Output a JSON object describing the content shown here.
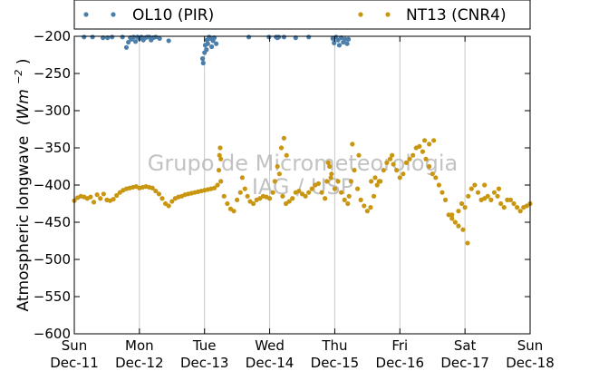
{
  "chart_data": {
    "type": "scatter",
    "title": "",
    "ylabel": "Atmospheric longwave",
    "ylabel_unit_base": "(Wm",
    "ylabel_unit_exp": "−2",
    "ylabel_unit_close": ")",
    "xlabel": "",
    "ylim": [
      -600,
      -200
    ],
    "xlim": [
      0,
      7
    ],
    "y_ticks": [
      -200,
      -250,
      -300,
      -350,
      -400,
      -450,
      -500,
      -550,
      -600
    ],
    "y_tick_labels": [
      "−200",
      "−250",
      "−300",
      "−350",
      "−400",
      "−450",
      "−500",
      "−550",
      "−600"
    ],
    "x_ticks": [
      {
        "x": 0,
        "day": "Sun",
        "date": "Dec-11"
      },
      {
        "x": 1,
        "day": "Mon",
        "date": "Dec-12"
      },
      {
        "x": 2,
        "day": "Tue",
        "date": "Dec-13"
      },
      {
        "x": 3,
        "day": "Wed",
        "date": "Dec-14"
      },
      {
        "x": 4,
        "day": "Thu",
        "date": "Dec-15"
      },
      {
        "x": 5,
        "day": "Fri",
        "date": "Dec-16"
      },
      {
        "x": 6,
        "day": "Sat",
        "date": "Dec-17"
      },
      {
        "x": 7,
        "day": "Sun",
        "date": "Dec-18"
      }
    ],
    "grid": "vertical",
    "legend_position": "top",
    "watermark": [
      "Grupo de Micrometeorologia",
      "IAG / USP"
    ],
    "series": [
      {
        "name": "OL10 (PIR)",
        "color": "#4c7eab",
        "x": [
          0.15,
          0.28,
          0.44,
          0.51,
          0.58,
          0.74,
          0.8,
          0.83,
          0.86,
          0.88,
          0.91,
          0.94,
          0.97,
          1.0,
          1.03,
          1.06,
          1.09,
          1.12,
          1.15,
          1.18,
          1.21,
          1.25,
          1.31,
          1.45,
          1.97,
          1.98,
          2.0,
          2.01,
          2.03,
          2.04,
          2.05,
          2.07,
          2.09,
          2.11,
          2.13,
          2.15,
          2.18,
          2.68,
          2.99,
          3.1,
          3.12,
          3.14,
          3.22,
          3.4,
          3.6,
          3.97,
          3.99,
          4.02,
          4.05,
          4.07,
          4.1,
          4.13,
          4.16,
          4.19,
          4.21
        ],
        "y": [
          -201,
          -201,
          -202,
          -202,
          -201,
          -201,
          -215,
          -208,
          -202,
          -204,
          -201,
          -207,
          -201,
          -203,
          -201,
          -205,
          -202,
          -201,
          -201,
          -205,
          -202,
          -201,
          -203,
          -206,
          -230,
          -236,
          -222,
          -212,
          -218,
          -205,
          -210,
          -201,
          -203,
          -214,
          -206,
          -202,
          -210,
          -201,
          -201,
          -201,
          -202,
          -201,
          -201,
          -202,
          -201,
          -203,
          -209,
          -201,
          -205,
          -212,
          -202,
          -208,
          -204,
          -210,
          -204
        ]
      },
      {
        "name": "NT13 (CNR4)",
        "color": "#c99611",
        "x": [
          0.0,
          0.05,
          0.1,
          0.15,
          0.2,
          0.25,
          0.3,
          0.35,
          0.4,
          0.45,
          0.5,
          0.55,
          0.6,
          0.65,
          0.7,
          0.75,
          0.8,
          0.85,
          0.9,
          0.95,
          1.0,
          1.05,
          1.1,
          1.15,
          1.2,
          1.25,
          1.3,
          1.35,
          1.4,
          1.45,
          1.5,
          1.55,
          1.6,
          1.65,
          1.7,
          1.75,
          1.8,
          1.85,
          1.9,
          1.95,
          2.0,
          2.05,
          2.1,
          2.15,
          2.2,
          2.22,
          2.25,
          2.3,
          2.35,
          2.4,
          2.45,
          2.5,
          2.55,
          2.58,
          2.62,
          2.66,
          2.7,
          2.75,
          2.8,
          2.85,
          2.9,
          2.95,
          3.0,
          3.05,
          3.08,
          3.12,
          3.15,
          3.2,
          3.25,
          3.3,
          3.35,
          3.4,
          3.45,
          3.5,
          3.55,
          3.6,
          3.65,
          3.7,
          3.75,
          3.8,
          3.85,
          3.88,
          3.9,
          3.95,
          4.0,
          4.05,
          4.1,
          4.15,
          4.2,
          4.22,
          4.25,
          4.3,
          4.35,
          4.4,
          4.45,
          4.5,
          4.55,
          4.6,
          4.65,
          4.7,
          4.75,
          4.8,
          4.85,
          4.88,
          4.9,
          4.95,
          5.0,
          5.05,
          5.1,
          5.15,
          5.2,
          5.25,
          5.3,
          5.35,
          5.4,
          5.45,
          5.5,
          5.55,
          5.6,
          5.65,
          5.7,
          5.75,
          5.8,
          5.85,
          5.9,
          5.95,
          6.0,
          6.05,
          6.1,
          6.15,
          6.2,
          6.25,
          6.3,
          6.35,
          6.4,
          6.45,
          6.5,
          6.55,
          6.6,
          6.65,
          6.7,
          6.75,
          6.8,
          6.85,
          6.9,
          6.95,
          7.0,
          5.38,
          5.45,
          5.52,
          5.8,
          5.9,
          5.97,
          6.04,
          6.3,
          6.52,
          2.23,
          2.24,
          2.25,
          3.18,
          3.22,
          3.26,
          3.92,
          3.94,
          4.27,
          4.37,
          4.56,
          4.62,
          4.68
        ],
        "y": [
          -421,
          -417,
          -415,
          -416,
          -418,
          -416,
          -423,
          -413,
          -418,
          -412,
          -420,
          -421,
          -419,
          -414,
          -410,
          -407,
          -405,
          -404,
          -403,
          -402,
          -404,
          -403,
          -402,
          -403,
          -404,
          -408,
          -412,
          -418,
          -425,
          -428,
          -422,
          -418,
          -416,
          -415,
          -413,
          -412,
          -411,
          -410,
          -409,
          -408,
          -407,
          -406,
          -405,
          -404,
          -400,
          -380,
          -395,
          -415,
          -425,
          -432,
          -435,
          -420,
          -410,
          -390,
          -405,
          -415,
          -422,
          -425,
          -420,
          -418,
          -415,
          -416,
          -418,
          -410,
          -395,
          -375,
          -385,
          -415,
          -425,
          -422,
          -418,
          -410,
          -408,
          -412,
          -415,
          -410,
          -405,
          -400,
          -398,
          -410,
          -418,
          -395,
          -370,
          -385,
          -405,
          -395,
          -410,
          -420,
          -425,
          -415,
          -395,
          -380,
          -405,
          -420,
          -428,
          -435,
          -430,
          -415,
          -400,
          -395,
          -380,
          -370,
          -365,
          -360,
          -372,
          -380,
          -390,
          -385,
          -370,
          -365,
          -360,
          -350,
          -348,
          -355,
          -365,
          -375,
          -385,
          -390,
          -400,
          -410,
          -420,
          -440,
          -445,
          -450,
          -435,
          -425,
          -430,
          -415,
          -405,
          -400,
          -410,
          -420,
          -418,
          -415,
          -420,
          -410,
          -415,
          -425,
          -430,
          -420,
          -420,
          -425,
          -430,
          -435,
          -430,
          -428,
          -425,
          -340,
          -345,
          -340,
          -440,
          -455,
          -460,
          -478,
          -400,
          -405,
          -360,
          -350,
          -365,
          -350,
          -337,
          -360,
          -375,
          -390,
          -345,
          -360,
          -395,
          -390,
          -395
        ]
      }
    ]
  }
}
